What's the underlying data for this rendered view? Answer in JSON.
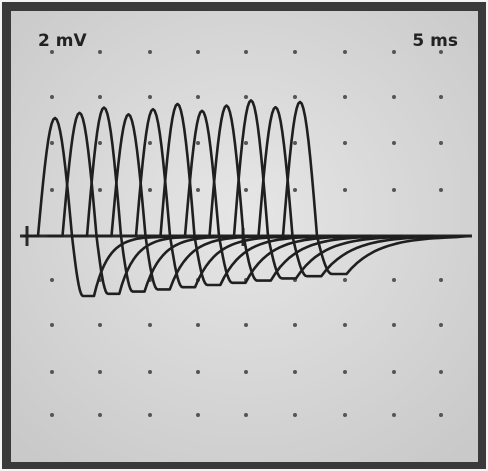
{
  "labels": {
    "voltage_scale": "2 mV",
    "time_scale": "5 ms"
  }
}
